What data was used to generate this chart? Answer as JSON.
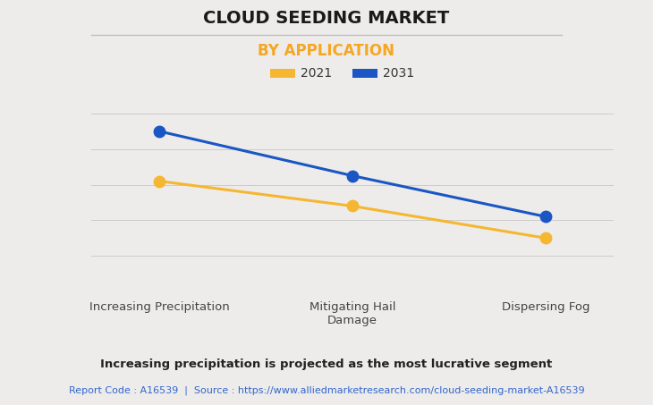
{
  "title": "CLOUD SEEDING MARKET",
  "subtitle": "BY APPLICATION",
  "categories": [
    "Increasing Precipitation",
    "Mitigating Hail\nDamage",
    "Dispersing Fog"
  ],
  "series": [
    {
      "label": "2021",
      "color": "#F5B731",
      "values": [
        62,
        48,
        30
      ]
    },
    {
      "label": "2031",
      "color": "#1A56C4",
      "values": [
        90,
        65,
        42
      ]
    }
  ],
  "ylim": [
    0,
    100
  ],
  "background_color": "#EEECEA",
  "plot_bg_color": "#EEECEA",
  "grid_color": "#CCCCCC",
  "title_fontsize": 14,
  "subtitle_fontsize": 12,
  "subtitle_color": "#F5A623",
  "legend_fontsize": 10,
  "axis_label_fontsize": 9.5,
  "footer_bold": "Increasing precipitation is projected as the most lucrative segment",
  "footer_source": "Report Code : A16539  |  Source : https://www.alliedmarketresearch.com/cloud-seeding-market-A16539",
  "footer_source_color": "#3366CC",
  "marker_size": 9,
  "line_width": 2.2
}
